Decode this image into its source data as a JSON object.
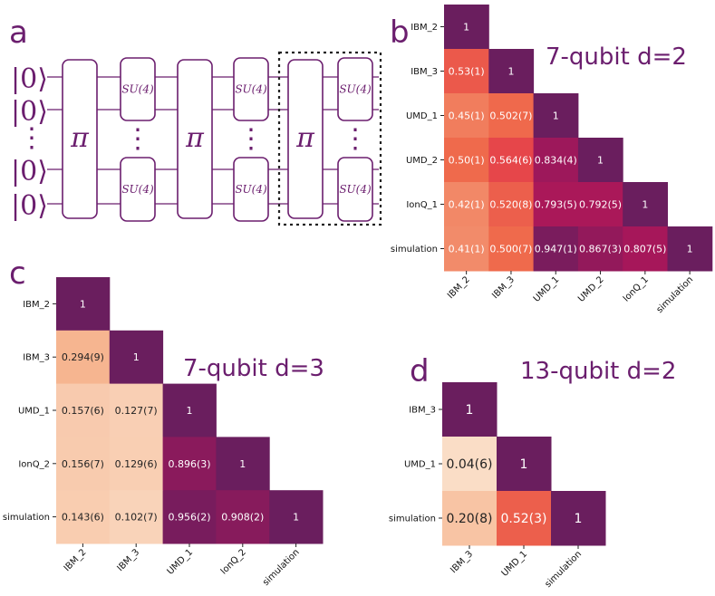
{
  "panels": {
    "a": {
      "letter": "a"
    },
    "b": {
      "letter": "b",
      "title": "7-qubit d=2"
    },
    "c": {
      "letter": "c",
      "title": "7-qubit d=3"
    },
    "d": {
      "letter": "d",
      "title": "13-qubit d=2"
    }
  },
  "circuit": {
    "ket": "|0⟩",
    "dots": "⋮",
    "pi_label": "π",
    "su4_label": "SU(4)",
    "qubit_rows": 4
  },
  "colors": {
    "accent": "#6b1e6e",
    "colormap": [
      "#fbe3cf",
      "#f6b48f",
      "#ef6a4c",
      "#e43d4a",
      "#a8175a",
      "#6a1e5e"
    ]
  },
  "chart_data": [
    {
      "type": "heatmap",
      "panel": "b",
      "title": "7-qubit d=2",
      "labels": [
        "IBM_2",
        "IBM_3",
        "UMD_1",
        "UMD_2",
        "IonQ_1",
        "simulation"
      ],
      "values": [
        [
          1
        ],
        [
          0.53,
          1
        ],
        [
          0.45,
          0.502,
          1
        ],
        [
          0.5,
          0.564,
          0.834,
          1
        ],
        [
          0.42,
          0.52,
          0.793,
          0.792,
          1
        ],
        [
          0.41,
          0.5,
          0.947,
          0.867,
          0.807,
          1
        ]
      ],
      "annotations": [
        [
          "1"
        ],
        [
          "0.53(1)",
          "1"
        ],
        [
          "0.45(1)",
          "0.502(7)",
          "1"
        ],
        [
          "0.50(1)",
          "0.564(6)",
          "0.834(4)",
          "1"
        ],
        [
          "0.42(1)",
          "0.520(8)",
          "0.793(5)",
          "0.792(5)",
          "1"
        ],
        [
          "0.41(1)",
          "0.500(7)",
          "0.947(1)",
          "0.867(3)",
          "0.807(5)",
          "1"
        ]
      ]
    },
    {
      "type": "heatmap",
      "panel": "c",
      "title": "7-qubit d=3",
      "labels": [
        "IBM_2",
        "IBM_3",
        "UMD_1",
        "IonQ_2",
        "simulation"
      ],
      "values": [
        [
          1
        ],
        [
          0.294,
          1
        ],
        [
          0.157,
          0.127,
          1
        ],
        [
          0.156,
          0.129,
          0.896,
          1
        ],
        [
          0.143,
          0.102,
          0.956,
          0.908,
          1
        ]
      ],
      "annotations": [
        [
          "1"
        ],
        [
          "0.294(9)",
          "1"
        ],
        [
          "0.157(6)",
          "0.127(7)",
          "1"
        ],
        [
          "0.156(7)",
          "0.129(6)",
          "0.896(3)",
          "1"
        ],
        [
          "0.143(6)",
          "0.102(7)",
          "0.956(2)",
          "0.908(2)",
          "1"
        ]
      ]
    },
    {
      "type": "heatmap",
      "panel": "d",
      "title": "13-qubit d=2",
      "labels": [
        "IBM_3",
        "UMD_1",
        "simulation"
      ],
      "values": [
        [
          1
        ],
        [
          0.04,
          1
        ],
        [
          0.2,
          0.52,
          1
        ]
      ],
      "annotations": [
        [
          "1"
        ],
        [
          "0.04(6)",
          "1"
        ],
        [
          "0.20(8)",
          "0.52(3)",
          "1"
        ]
      ]
    }
  ]
}
